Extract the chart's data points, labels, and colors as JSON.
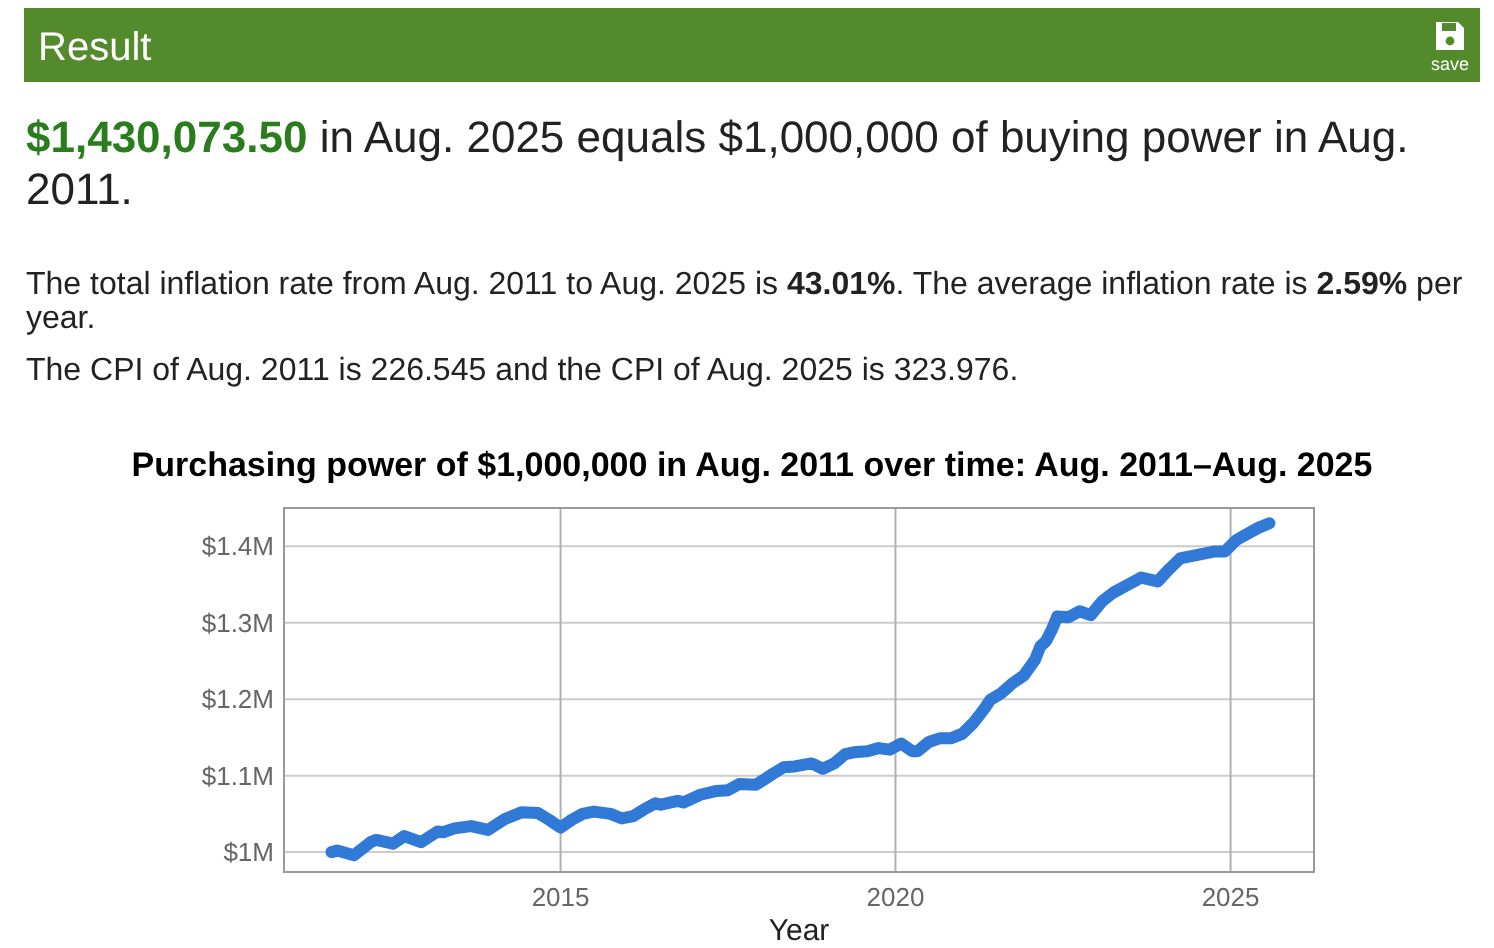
{
  "chart_data": {
    "type": "line",
    "title": "Purchasing power of $1,000,000 in Aug. 2011 over time: Aug. 2011–Aug. 2025",
    "xlabel": "Year",
    "annotations": [
      "Result",
      "save",
      "$1,430,073.50 in Aug. 2025 equals $1,000,000 of buying power in Aug. 2011.",
      "The total inflation rate from Aug. 2011 to Aug. 2025 is 43.01%. The average inflation rate is 2.59% per year.",
      "The CPI of Aug. 2011 is 226.545 and the CPI of Aug. 2025 is 323.976."
    ],
    "x": [
      "2011-08",
      "2011-09",
      "2011-12",
      "2012-03",
      "2012-04",
      "2012-07",
      "2012-09",
      "2012-12",
      "2013-03",
      "2013-04",
      "2013-06",
      "2013-09",
      "2013-12",
      "2014-03",
      "2014-06",
      "2014-09",
      "2014-11",
      "2015-01",
      "2015-03",
      "2015-05",
      "2015-07",
      "2015-10",
      "2015-12",
      "2016-02",
      "2016-04",
      "2016-06",
      "2016-07",
      "2016-10",
      "2016-11",
      "2017-02",
      "2017-05",
      "2017-07",
      "2017-09",
      "2017-12",
      "2018-03",
      "2018-05",
      "2018-07",
      "2018-10",
      "2018-12",
      "2019-02",
      "2019-04",
      "2019-06",
      "2019-08",
      "2019-10",
      "2019-12",
      "2020-02",
      "2020-04",
      "2020-05",
      "2020-07",
      "2020-09",
      "2020-11",
      "2021-01",
      "2021-03",
      "2021-05",
      "2021-06",
      "2021-08",
      "2021-10",
      "2021-12",
      "2022-02",
      "2022-03",
      "2022-04",
      "2022-05",
      "2022-06",
      "2022-08",
      "2022-10",
      "2022-12",
      "2023-02",
      "2023-04",
      "2023-06",
      "2023-08",
      "2023-09",
      "2023-12",
      "2024-02",
      "2024-04",
      "2024-06",
      "2024-08",
      "2024-10",
      "2024-12",
      "2025-02",
      "2025-04",
      "2025-06",
      "2025-08"
    ],
    "series": [
      {
        "color": "#3079d6",
        "values": [
          1.0,
          1.002,
          0.996,
          1.013,
          1.016,
          1.011,
          1.021,
          1.013,
          1.027,
          1.026,
          1.031,
          1.034,
          1.029,
          1.043,
          1.052,
          1.051,
          1.042,
          1.032,
          1.042,
          1.05,
          1.053,
          1.05,
          1.044,
          1.047,
          1.056,
          1.064,
          1.062,
          1.067,
          1.065,
          1.075,
          1.08,
          1.081,
          1.089,
          1.088,
          1.102,
          1.111,
          1.112,
          1.116,
          1.109,
          1.116,
          1.128,
          1.131,
          1.132,
          1.136,
          1.134,
          1.142,
          1.132,
          1.132,
          1.144,
          1.149,
          1.149,
          1.155,
          1.169,
          1.188,
          1.199,
          1.208,
          1.221,
          1.231,
          1.252,
          1.269,
          1.276,
          1.29,
          1.308,
          1.307,
          1.315,
          1.31,
          1.328,
          1.339,
          1.347,
          1.355,
          1.359,
          1.354,
          1.37,
          1.384,
          1.387,
          1.39,
          1.393,
          1.393,
          1.408,
          1.416,
          1.424,
          1.43
        ]
      }
    ],
    "xlim": [
      "2010-11-15",
      "2026-04-01"
    ],
    "xticks": [
      "2015",
      "2020",
      "2025"
    ],
    "ylim": [
      0.974,
      1.45
    ],
    "yticks": [
      {
        "value": 1,
        "label": "$1M"
      },
      {
        "value": 1.1,
        "label": "$1.1M"
      },
      {
        "value": 1.2,
        "label": "$1.2M"
      },
      {
        "value": 1.3,
        "label": "$1.3M"
      },
      {
        "value": 1.4,
        "label": "$1.4M"
      }
    ],
    "grid": true
  }
}
